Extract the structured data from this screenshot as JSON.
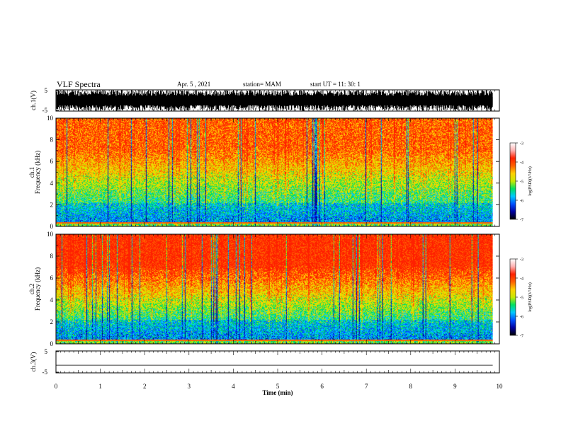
{
  "header": {
    "title": "VLF Spectra",
    "date": "Apr. 5 , 2021",
    "station": "station= MAM",
    "start_ut": "start UT = 11: 30: 1"
  },
  "chart_data": [
    {
      "type": "line",
      "name": "waveform-ch1",
      "ylabel": "ch.1(V)",
      "yticks": [
        "5",
        "-5"
      ],
      "ylim": [
        -5,
        5
      ],
      "note_visual": "dense saturated black waveform"
    },
    {
      "type": "heatmap",
      "name": "spectrogram-ch1",
      "ylabel": "ch.1 Frequency (kHz)",
      "ylabel_line1": "ch.1",
      "ylabel_line2": "Frequency (kHz)",
      "ylim": [
        0,
        10
      ],
      "yticks": [
        "0",
        "2",
        "4",
        "6",
        "8",
        "10"
      ],
      "xlim": [
        0,
        10
      ],
      "colorbar": {
        "label": "log(PSD)(V²/Hz)",
        "ticks": [
          "-3",
          "-4",
          "-5",
          "-6",
          "-7"
        ],
        "range": [
          -7,
          -3
        ]
      }
    },
    {
      "type": "heatmap",
      "name": "spectrogram-ch2",
      "ylabel": "ch.2 Frequency (kHz)",
      "ylabel_line1": "ch.2",
      "ylabel_line2": "Frequency (kHz)",
      "ylim": [
        0,
        10
      ],
      "yticks": [
        "0",
        "2",
        "4",
        "6",
        "8",
        "10"
      ],
      "xlim": [
        0,
        10
      ],
      "colorbar": {
        "label": "log(PSD)(V²/Hz)",
        "ticks": [
          "-3",
          "-4",
          "-5",
          "-6",
          "-7"
        ],
        "range": [
          -7,
          -3
        ]
      }
    },
    {
      "type": "line",
      "name": "waveform-ch3",
      "ylabel": "ch.3(V)",
      "yticks": [
        "5",
        "-5"
      ],
      "ylim": [
        -5,
        5
      ],
      "x": [
        0,
        9.85
      ],
      "y": [
        -1.5,
        -1.5
      ]
    }
  ],
  "xaxis": {
    "label": "Time (min)",
    "ticks": [
      "0",
      "1",
      "2",
      "3",
      "4",
      "5",
      "6",
      "7",
      "8",
      "9",
      "10"
    ],
    "xlim": [
      0,
      10
    ],
    "data_end": 9.85
  },
  "colors": {
    "scale": [
      "#000000",
      "#0000a0",
      "#0050ff",
      "#00c8ff",
      "#00e060",
      "#c8e800",
      "#ffd000",
      "#ff6000",
      "#ff2000",
      "#ffb0b0",
      "#ffffff"
    ]
  }
}
